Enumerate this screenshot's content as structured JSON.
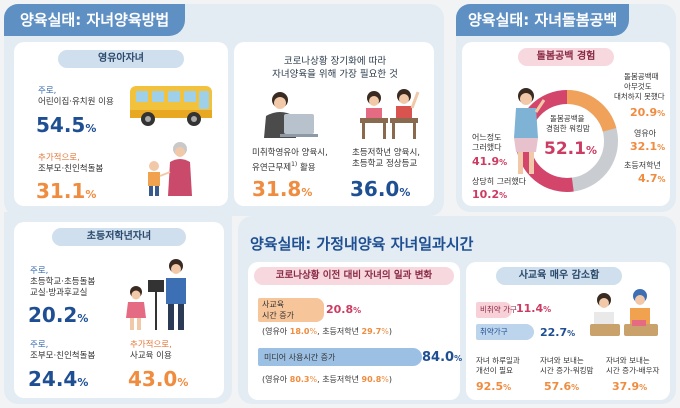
{
  "panel1": {
    "title": "양육실태: 자녀양육방법",
    "infant": {
      "heading": "영유아자녀",
      "primary_label": "주로,",
      "primary_text": "어린이집·유치원 이용",
      "primary_value": "54.5",
      "additional_label": "추가적으로,",
      "additional_text": "조부모·친인척돌봄",
      "additional_value": "31.1"
    },
    "covid": {
      "heading_line1": "코로나상황 장기화에 따라",
      "heading_line2": "자녀양육을 위해 가장 필요한 것",
      "left_line1": "미취학영유아 양육시,",
      "left_line2": "유연근무제",
      "left_sup": "1)",
      "left_line2_tail": " 활용",
      "left_value": "31.8",
      "right_line1": "초등저학년 양육시,",
      "right_line2": "초등학교 정상등교",
      "right_value": "36.0"
    },
    "elementary": {
      "heading": "초등저학년자녀",
      "primary_label": "주로,",
      "primary_line1": "초등학교·초등돌봄",
      "primary_line2": "교실·방과후교실",
      "primary_value": "20.2",
      "secondary_label": "주로,",
      "secondary_text": "조부모·친인척돌봄",
      "secondary_value": "24.4",
      "additional_label": "추가적으로,",
      "additional_text": "사교육 이용",
      "additional_value": "43.0"
    }
  },
  "panel2": {
    "title": "양육실태: 자녀돌봄공백",
    "heading": "돌봄공백 경험",
    "center_line1": "돌봄공백을",
    "center_line2": "경험한 워킹맘",
    "center_value": "52.1",
    "left1_line1": "어느정도",
    "left1_line2": "그러했다",
    "left1_value": "41.9",
    "left2_text": "상당히 그러했다",
    "left2_value": "10.2",
    "right1_line1": "돌봄공백때",
    "right1_line2": "아무것도",
    "right1_line3": "대처하지 못했다",
    "right1_value": "20.9",
    "right2_text": "영유아",
    "right2_value": "32.1",
    "right3_text": "초등저학년",
    "right3_value": "4.7"
  },
  "panel3": {
    "title": "양육실태: 가정내양육 자녀일과시간",
    "change": {
      "heading": "코로나상황 이전 대비 자녀의 일과 변화",
      "bar1_line1": "사교육",
      "bar1_line2": "시간 증가",
      "bar1_value": "20.8",
      "bar1_detail_a": "(영유아 ",
      "bar1_infant": "18.0",
      "bar1_detail_b": ", 초등저학년 ",
      "bar1_elem": "29.7",
      "bar1_detail_c": ")",
      "bar2_label": "미디어 사용시간 증가",
      "bar2_value": "84.0",
      "bar2_detail_a": "(영유아 ",
      "bar2_infant": "80.3",
      "bar2_detail_b": ", 초등저학년 ",
      "bar2_elem": "90.8",
      "bar2_detail_c": ")"
    },
    "private_ed": {
      "heading": "사교육 매우 감소함",
      "bar1_label": "비취약 가구",
      "bar1_value": "11.4",
      "bar2_label": "취약가구",
      "bar2_value": "22.7",
      "stat1_line1": "자녀 하루일과",
      "stat1_line2": "개선이 필요",
      "stat1_value": "92.5",
      "stat2_line1": "자녀와 보내는",
      "stat2_line2": "시간 증가-워킹맘",
      "stat2_value": "57.6",
      "stat3_line1": "자녀와 보내는",
      "stat3_line2": "시간 증가-배우자",
      "stat3_value": "37.9"
    }
  },
  "percent_sign": "%",
  "colors": {
    "header_blue": "#5f90c4",
    "value_blue": "#1f4f93",
    "value_orange": "#ef8c3f",
    "value_pink": "#cc3b62",
    "donut_pink": "#d4456b",
    "donut_orange": "#f0a15a",
    "donut_gray": "#c9ccd0"
  }
}
